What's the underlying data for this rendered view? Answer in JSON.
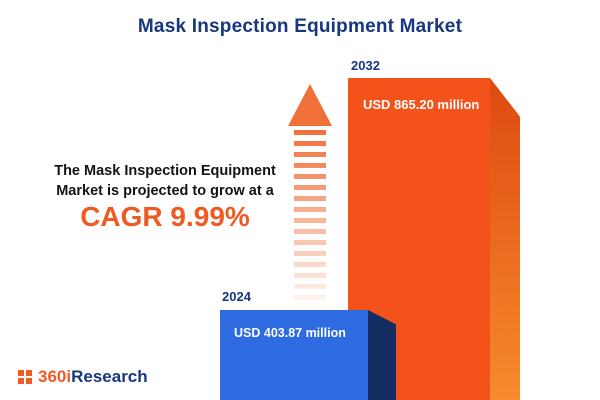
{
  "title": "Mask Inspection Equipment Market",
  "description": {
    "line1": "The Mask Inspection Equipment",
    "line2": "Market is projected to grow at a",
    "cagr": "CAGR 9.99%"
  },
  "logo": {
    "prefix": "360i",
    "suffix": "Research"
  },
  "chart_data": {
    "type": "bar",
    "title": "Mask Inspection Equipment Market",
    "categories": [
      "2024",
      "2032"
    ],
    "values": [
      403.87,
      865.2
    ],
    "unit": "USD million",
    "value_labels": [
      "USD 403.87 million",
      "USD 865.20 million"
    ],
    "cagr_percent": 9.99,
    "ylim": [
      0,
      900
    ],
    "grid": false,
    "legend": "none",
    "colors": {
      "bar_2024_front": "#2e6ae0",
      "bar_2024_side": "#142d63",
      "bar_2032_front": "#f4521b",
      "bar_2032_side": "#dd4a10",
      "accent_orange": "#f05a22",
      "title_navy": "#17377e"
    }
  }
}
